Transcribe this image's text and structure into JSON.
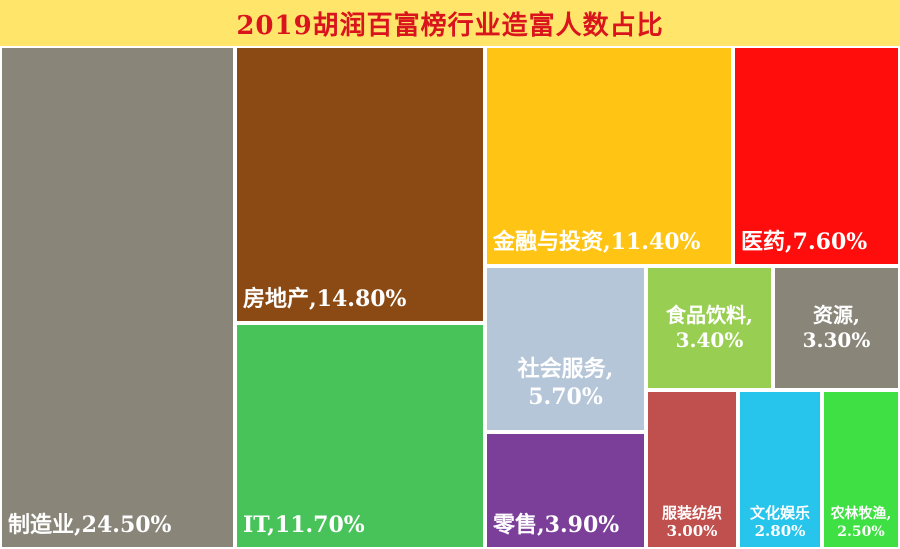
{
  "colors": {
    "title_bg": "#ffe66b",
    "title_text": "#d9141c",
    "label_text": "#ffffff"
  },
  "chart_data": {
    "type": "treemap",
    "title": "2019胡润百富榜行业造富人数占比",
    "items": [
      {
        "name": "制造业,",
        "value": 24.5,
        "value_label": "24.50%",
        "color": "#898579"
      },
      {
        "name": "房地产,",
        "value": 14.8,
        "value_label": "14.80%",
        "color": "#8b4a14"
      },
      {
        "name": "IT,",
        "value": 11.7,
        "value_label": "11.70%",
        "color": "#47c35a"
      },
      {
        "name": "金融与投资,",
        "value": 11.4,
        "value_label": "11.40%",
        "color": "#ffc414"
      },
      {
        "name": "医药,",
        "value": 7.6,
        "value_label": "7.60%",
        "color": "#ff0c0c"
      },
      {
        "name": "社会服务,",
        "value": 5.7,
        "value_label": "5.70%",
        "color": "#b6c6d9"
      },
      {
        "name": "零售,",
        "value": 3.9,
        "value_label": "3.90%",
        "color": "#7b3f9a"
      },
      {
        "name": "食品饮料,",
        "value": 3.4,
        "value_label": "3.40%",
        "color": "#98cf52"
      },
      {
        "name": "资源,",
        "value": 3.3,
        "value_label": "3.30%",
        "color": "#898579"
      },
      {
        "name": "服装纺织",
        "value": 3.0,
        "value_label": "3.00%",
        "color": "#c0504d"
      },
      {
        "name": "文化娱乐",
        "value": 2.8,
        "value_label": "2.80%",
        "color": "#27c4ec"
      },
      {
        "name": "农林牧渔,",
        "value": 2.5,
        "value_label": "2.50%",
        "color": "#3fe043"
      }
    ]
  }
}
